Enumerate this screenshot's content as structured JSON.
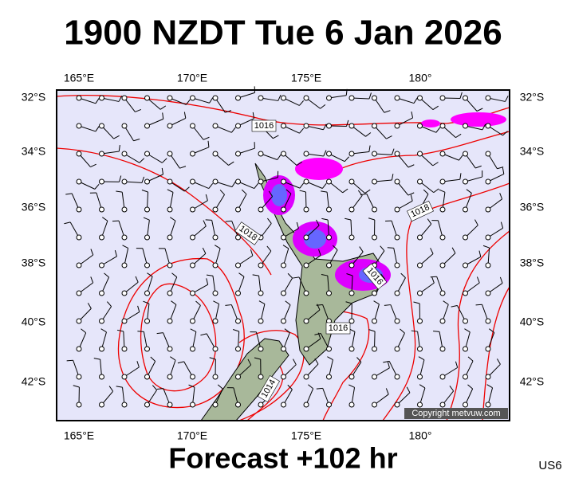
{
  "title": "1900 NZDT Tue 6 Jan 2026",
  "footer": "Forecast +102 hr",
  "code": "US6",
  "map": {
    "lon_labels": [
      "165°E",
      "170°E",
      "175°E",
      "180°"
    ],
    "lat_labels": [
      "32°S",
      "34°S",
      "36°S",
      "38°S",
      "40°S",
      "42°S"
    ],
    "isobar_labels": [
      "1016",
      "1018",
      "1018",
      "1016",
      "1016",
      "1014"
    ],
    "copyright": "Copyright metvuw.com"
  }
}
